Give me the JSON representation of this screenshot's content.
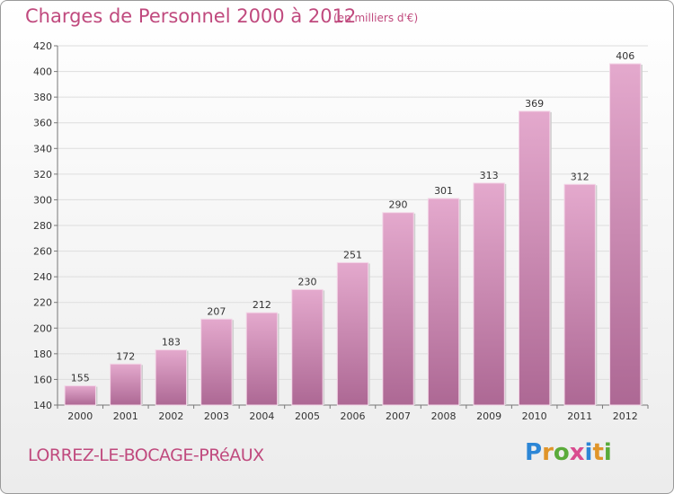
{
  "header": {
    "title": "Charges de Personnel 2000 à 2012",
    "subtitle": "(en milliers d'€)"
  },
  "footer": {
    "commune": "LORREZ-LE-BOCAGE-PRéAUX",
    "logo": "Proxiti"
  },
  "colors": {
    "bar_top": "#e4a9cd",
    "bar_bottom": "#ad6894",
    "text_accent": "#c04a7e"
  },
  "chart_data": {
    "type": "bar",
    "title": "Charges de Personnel 2000 à 2012",
    "subtitle": "(en milliers d'€)",
    "categories": [
      "2000",
      "2001",
      "2002",
      "2003",
      "2004",
      "2005",
      "2006",
      "2007",
      "2008",
      "2009",
      "2010",
      "2011",
      "2012"
    ],
    "values": [
      155,
      172,
      183,
      207,
      212,
      230,
      251,
      290,
      301,
      313,
      369,
      312,
      406
    ],
    "ylim": [
      140,
      420
    ],
    "yticks": [
      140,
      160,
      180,
      200,
      220,
      240,
      260,
      280,
      300,
      320,
      340,
      360,
      380,
      400,
      420
    ],
    "grid": true,
    "legend": "none"
  }
}
